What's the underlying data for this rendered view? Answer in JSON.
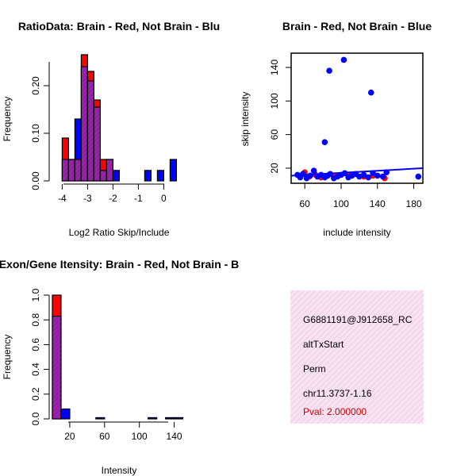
{
  "colors": {
    "red": "#ff0000",
    "blue": "#0000ff",
    "purple": "#a020f0",
    "overlap_hatch": "#dd2288",
    "info_bg": "#f6dcef",
    "info_hatch": "#eab4dc",
    "pval": "#cc0000",
    "axis": "#000000"
  },
  "chart_data": [
    {
      "id": "ratio_hist",
      "type": "bar",
      "title": "RatioData: Brain - Red, Not Brain - Blu",
      "xlabel": "Log2 Ratio Skip/Include",
      "ylabel": "Frequency",
      "xlim": [
        -4.2,
        0.8
      ],
      "ylim": [
        0,
        0.26
      ],
      "xticks": [
        -4,
        -3,
        -2,
        -1,
        0
      ],
      "xtick_labels": [
        "-4",
        "-3",
        "-2",
        "-1",
        "0"
      ],
      "yticks": [
        0.0,
        0.1,
        0.2
      ],
      "ytick_labels": [
        "0.00",
        "0.10",
        "0.20"
      ],
      "bin_width": 0.25,
      "bin_starts": [
        -4.0,
        -3.75,
        -3.5,
        -3.25,
        -3.0,
        -2.75,
        -2.5,
        -2.25,
        -2.0,
        -1.75,
        -1.5,
        -1.25,
        -1.0,
        -0.75,
        -0.5,
        -0.25,
        0.0,
        0.25
      ],
      "series": [
        {
          "name": "Brain",
          "color": "red",
          "values": [
            0.09,
            0.045,
            0.045,
            0.265,
            0.23,
            0.17,
            0.045,
            0.045,
            0,
            0,
            0,
            0,
            0,
            0,
            0,
            0,
            0,
            0
          ]
        },
        {
          "name": "Not Brain",
          "color": "blue",
          "values": [
            0.045,
            0.045,
            0.13,
            0.24,
            0.21,
            0.155,
            0.022,
            0.045,
            0.022,
            0,
            0,
            0,
            0,
            0.022,
            0,
            0.022,
            0,
            0.045
          ]
        }
      ]
    },
    {
      "id": "scatter",
      "type": "scatter",
      "title": "Brain - Red, Not Brain - Blue",
      "xlabel": "include intensity",
      "ylabel": "skip intensity",
      "xlim": [
        45,
        190
      ],
      "ylim": [
        2,
        157
      ],
      "xticks": [
        60,
        100,
        140,
        180
      ],
      "xtick_labels": [
        "60",
        "100",
        "140",
        "180"
      ],
      "yticks": [
        20,
        60,
        100,
        140
      ],
      "ytick_labels": [
        "20",
        "60",
        "100",
        "140"
      ],
      "series": [
        {
          "name": "Brain",
          "color": "red",
          "x": [
            60,
            65,
            72,
            78,
            85,
            92,
            110,
            125,
            135,
            148
          ],
          "y": [
            15,
            10,
            12,
            9,
            11,
            10,
            12,
            10,
            11,
            8
          ]
        },
        {
          "name": "Not Brain",
          "color": "blue",
          "x": [
            52,
            55,
            58,
            62,
            66,
            70,
            74,
            78,
            82,
            85,
            88,
            92,
            96,
            100,
            104,
            108,
            112,
            116,
            120,
            125,
            130,
            135,
            140,
            146,
            150,
            185,
            82,
            87,
            103,
            133
          ],
          "y": [
            12,
            9,
            13,
            8,
            11,
            17,
            10,
            12,
            9,
            11,
            13,
            8,
            10,
            12,
            14,
            9,
            11,
            13,
            10,
            12,
            9,
            14,
            11,
            10,
            15,
            10,
            51,
            136,
            149,
            110
          ]
        }
      ],
      "fit_line": {
        "color": "blue",
        "x": [
          45,
          190
        ],
        "y": [
          11,
          20
        ]
      }
    },
    {
      "id": "intensity_hist",
      "type": "bar",
      "title": "Exon/Gene Itensity: Brain - Red, Not Brain - B",
      "xlabel": "Intensity",
      "ylabel": "Frequency",
      "xlim": [
        0,
        155
      ],
      "ylim": [
        0,
        1.0
      ],
      "xticks": [
        20,
        60,
        100,
        140
      ],
      "xtick_labels": [
        "20",
        "60",
        "100",
        "140"
      ],
      "yticks": [
        0.0,
        0.2,
        0.4,
        0.6,
        0.8,
        1.0
      ],
      "ytick_labels": [
        "0.0",
        "0.2",
        "0.4",
        "0.6",
        "0.8",
        "1.0"
      ],
      "bin_width": 10,
      "bin_starts": [
        0,
        10,
        20,
        30,
        40,
        50,
        60,
        70,
        80,
        90,
        100,
        110,
        120,
        130,
        140
      ],
      "series": [
        {
          "name": "Brain",
          "color": "red",
          "values": [
            1.0,
            0,
            0,
            0,
            0,
            0,
            0,
            0,
            0,
            0,
            0,
            0,
            0,
            0,
            0
          ]
        },
        {
          "name": "Not Brain",
          "color": "blue",
          "values": [
            0.83,
            0.08,
            0,
            0,
            0,
            0.01,
            0,
            0,
            0,
            0,
            0,
            0.01,
            0,
            0.01,
            0.01
          ]
        }
      ]
    }
  ],
  "info": {
    "gene": "G6881191@J912658_RC",
    "event": "altTxStart",
    "method": "Perm",
    "location": "chr11.3737-1.16",
    "pval": "Pval: 2.000000"
  }
}
